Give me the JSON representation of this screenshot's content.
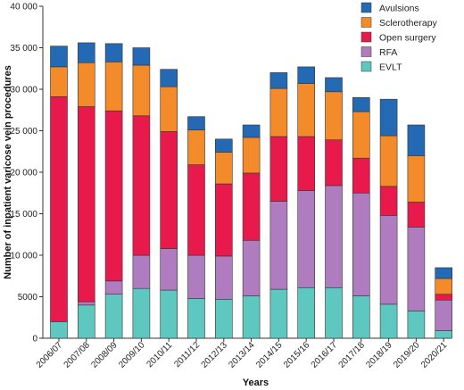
{
  "chart_data": {
    "type": "bar",
    "stacked": true,
    "title": "",
    "xlabel": "Years",
    "ylabel": "Number of inpatient varicose vein procedures",
    "ylim": [
      0,
      40000
    ],
    "yticks": [
      0,
      5000,
      10000,
      15000,
      20000,
      25000,
      30000,
      35000,
      40000
    ],
    "ytick_labels": [
      "0",
      "5000",
      "10 000",
      "15 000",
      "20 000",
      "25 000",
      "30 000",
      "35 000",
      "40 000"
    ],
    "grid": false,
    "legend_position": "top-right",
    "categories": [
      "2006/07",
      "2007/08",
      "2008/09",
      "2009/10",
      "2010/11",
      "2011/12",
      "2012/13",
      "2013/14",
      "2014/15",
      "2015/16",
      "2016/17",
      "2017/18",
      "2018/19",
      "2019/20",
      "2020/21"
    ],
    "series": [
      {
        "name": "EVLT",
        "color": "#5ec8c0",
        "values": [
          2000,
          4000,
          5300,
          6000,
          5800,
          4800,
          4700,
          5100,
          5900,
          6100,
          6100,
          5100,
          4100,
          3300,
          900
        ]
      },
      {
        "name": "RFA",
        "color": "#b07cc0",
        "values": [
          0,
          400,
          1600,
          4000,
          5000,
          5200,
          5200,
          6700,
          10600,
          11700,
          12300,
          12400,
          10700,
          10100,
          3700
        ]
      },
      {
        "name": "Open surgery",
        "color": "#e8194b",
        "values": [
          27100,
          23500,
          20500,
          16800,
          14100,
          10900,
          8700,
          8100,
          7800,
          6500,
          5500,
          4200,
          3500,
          3000,
          700
        ]
      },
      {
        "name": "Sclerotherapy",
        "color": "#f48b2a",
        "values": [
          3600,
          5300,
          5900,
          6100,
          5400,
          4200,
          3800,
          4300,
          5800,
          6400,
          5800,
          5600,
          6100,
          5600,
          1900
        ]
      },
      {
        "name": "Avulsions",
        "color": "#2469b3",
        "values": [
          2500,
          2400,
          2200,
          2100,
          2100,
          1600,
          1600,
          1500,
          1900,
          2000,
          1700,
          1700,
          4400,
          3700,
          1300
        ]
      }
    ],
    "legend_order": [
      "Avulsions",
      "Sclerotherapy",
      "Open surgery",
      "RFA",
      "EVLT"
    ]
  }
}
